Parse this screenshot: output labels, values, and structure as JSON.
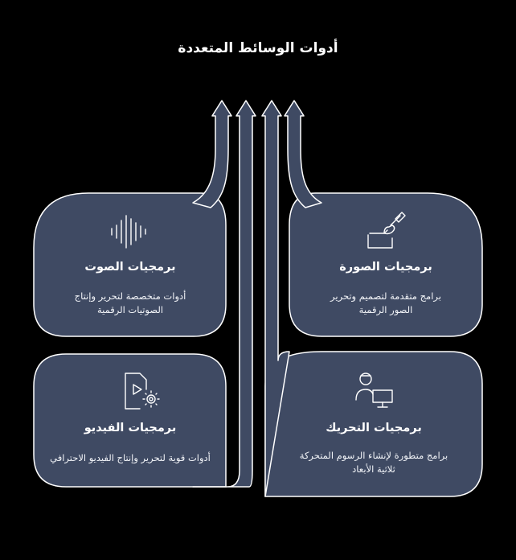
{
  "title": "أدوات الوسائط المتعددة",
  "colors": {
    "background": "#000000",
    "card_fill": "#3f4a63",
    "card_stroke": "#ffffff",
    "arrow_fill": "#3f4a63",
    "text": "#ffffff"
  },
  "cards": [
    {
      "id": "audio",
      "icon": "sound-wave-icon",
      "title": "برمجيات الصوت",
      "description_line1": "أدوات متخصصة لتحرير وإنتاج",
      "description_line2": "الصوتيات الرقمية"
    },
    {
      "id": "image",
      "icon": "paint-brush-icon",
      "title": "برمجيات الصورة",
      "description_line1": "برامج متقدمة لتصميم وتحرير",
      "description_line2": "الصور الرقمية"
    },
    {
      "id": "video",
      "icon": "video-file-gear-icon",
      "title": "برمجيات الفيديو",
      "description_line1": "أدوات قوية لتحرير وإنتاج الفيديو الاحترافي",
      "description_line2": ""
    },
    {
      "id": "animation",
      "icon": "user-monitor-icon",
      "title": "برمجيات التحريك",
      "description_line1": "برامج متطورة لإنشاء الرسوم المتحركة",
      "description_line2": "ثلاثية الأبعاد"
    }
  ]
}
